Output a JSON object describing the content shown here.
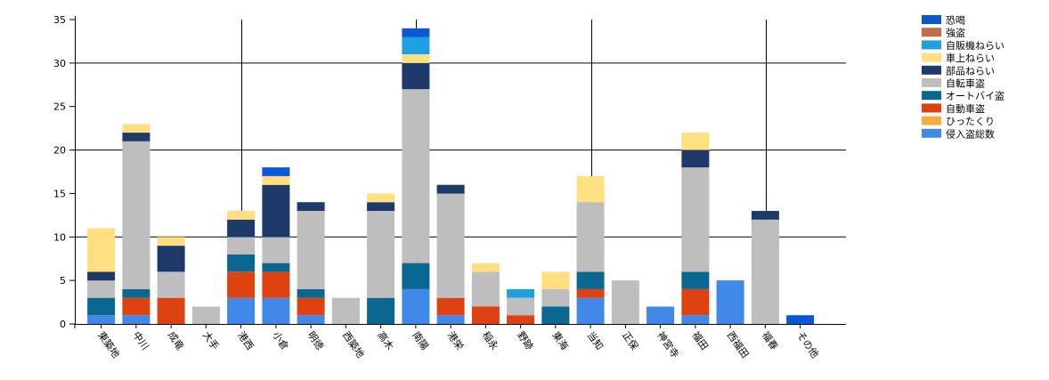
{
  "chart_data": {
    "type": "bar",
    "stacked": true,
    "categories": [
      "東築地",
      "中川",
      "成竜",
      "大手",
      "港西",
      "小倉",
      "明徳",
      "西築地",
      "高木",
      "南陽",
      "港栄",
      "稲永",
      "野跡",
      "東海",
      "当知",
      "正保",
      "神宮寺",
      "福田",
      "西福田",
      "福春",
      "その他"
    ],
    "series": [
      {
        "name": "侵入盗総数",
        "color": "#4189E8",
        "values": [
          1,
          1,
          0,
          0,
          3,
          3,
          1,
          0,
          0,
          4,
          1,
          0,
          0,
          0,
          3,
          0,
          2,
          1,
          5,
          0,
          0
        ]
      },
      {
        "name": "ひったくり",
        "color": "#F5AE3B",
        "values": [
          0,
          0,
          0,
          0,
          0,
          0,
          0,
          0,
          0,
          0,
          0,
          0,
          0,
          0,
          0,
          0,
          0,
          0,
          0,
          0,
          0
        ]
      },
      {
        "name": "自動車盗",
        "color": "#DD4210",
        "values": [
          0,
          2,
          3,
          0,
          3,
          3,
          2,
          0,
          0,
          0,
          2,
          2,
          1,
          0,
          1,
          0,
          0,
          3,
          0,
          0,
          0
        ]
      },
      {
        "name": "オートバイ盗",
        "color": "#0A6792",
        "values": [
          2,
          1,
          0,
          0,
          2,
          1,
          1,
          0,
          3,
          3,
          0,
          0,
          0,
          2,
          2,
          0,
          0,
          2,
          0,
          0,
          0
        ]
      },
      {
        "name": "自転車盗",
        "color": "#BEBEBE",
        "values": [
          2,
          17,
          3,
          2,
          2,
          3,
          9,
          3,
          10,
          20,
          12,
          4,
          2,
          2,
          8,
          5,
          0,
          12,
          0,
          12,
          0
        ]
      },
      {
        "name": "部品ねらい",
        "color": "#1D3A6B",
        "values": [
          1,
          1,
          3,
          0,
          2,
          6,
          1,
          0,
          1,
          3,
          1,
          0,
          0,
          0,
          0,
          0,
          0,
          2,
          0,
          1,
          0
        ]
      },
      {
        "name": "車上ねらい",
        "color": "#FFDF80",
        "values": [
          5,
          1,
          1,
          0,
          1,
          1,
          0,
          0,
          1,
          1,
          0,
          1,
          0,
          2,
          3,
          0,
          0,
          2,
          0,
          0,
          0
        ]
      },
      {
        "name": "自販機ねらい",
        "color": "#1EA0E2",
        "values": [
          0,
          0,
          0,
          0,
          0,
          0,
          0,
          0,
          0,
          2,
          0,
          0,
          1,
          0,
          0,
          0,
          0,
          0,
          0,
          0,
          0
        ]
      },
      {
        "name": "強盗",
        "color": "#C26A4A",
        "values": [
          0,
          0,
          0,
          0,
          0,
          0,
          0,
          0,
          0,
          0,
          0,
          0,
          0,
          0,
          0,
          0,
          0,
          0,
          0,
          0,
          0
        ]
      },
      {
        "name": "恐喝",
        "color": "#0A58D8",
        "values": [
          0,
          0,
          0,
          0,
          0,
          1,
          0,
          0,
          0,
          1,
          0,
          0,
          0,
          0,
          0,
          0,
          0,
          0,
          0,
          0,
          1
        ]
      }
    ],
    "legend_order": [
      "恐喝",
      "強盗",
      "自販機ねらい",
      "車上ねらい",
      "部品ねらい",
      "自転車盗",
      "オートバイ盗",
      "自動車盗",
      "ひったくり",
      "侵入盗総数"
    ],
    "ylim": [
      0,
      35
    ],
    "yticks": [
      0,
      5,
      10,
      15,
      20,
      25,
      30,
      35
    ],
    "grid": "horizontal lines at 30, 20, 10; vertical lines after every 4 categories",
    "legend_position": "top-right",
    "title": "",
    "xlabel": "",
    "ylabel": ""
  }
}
